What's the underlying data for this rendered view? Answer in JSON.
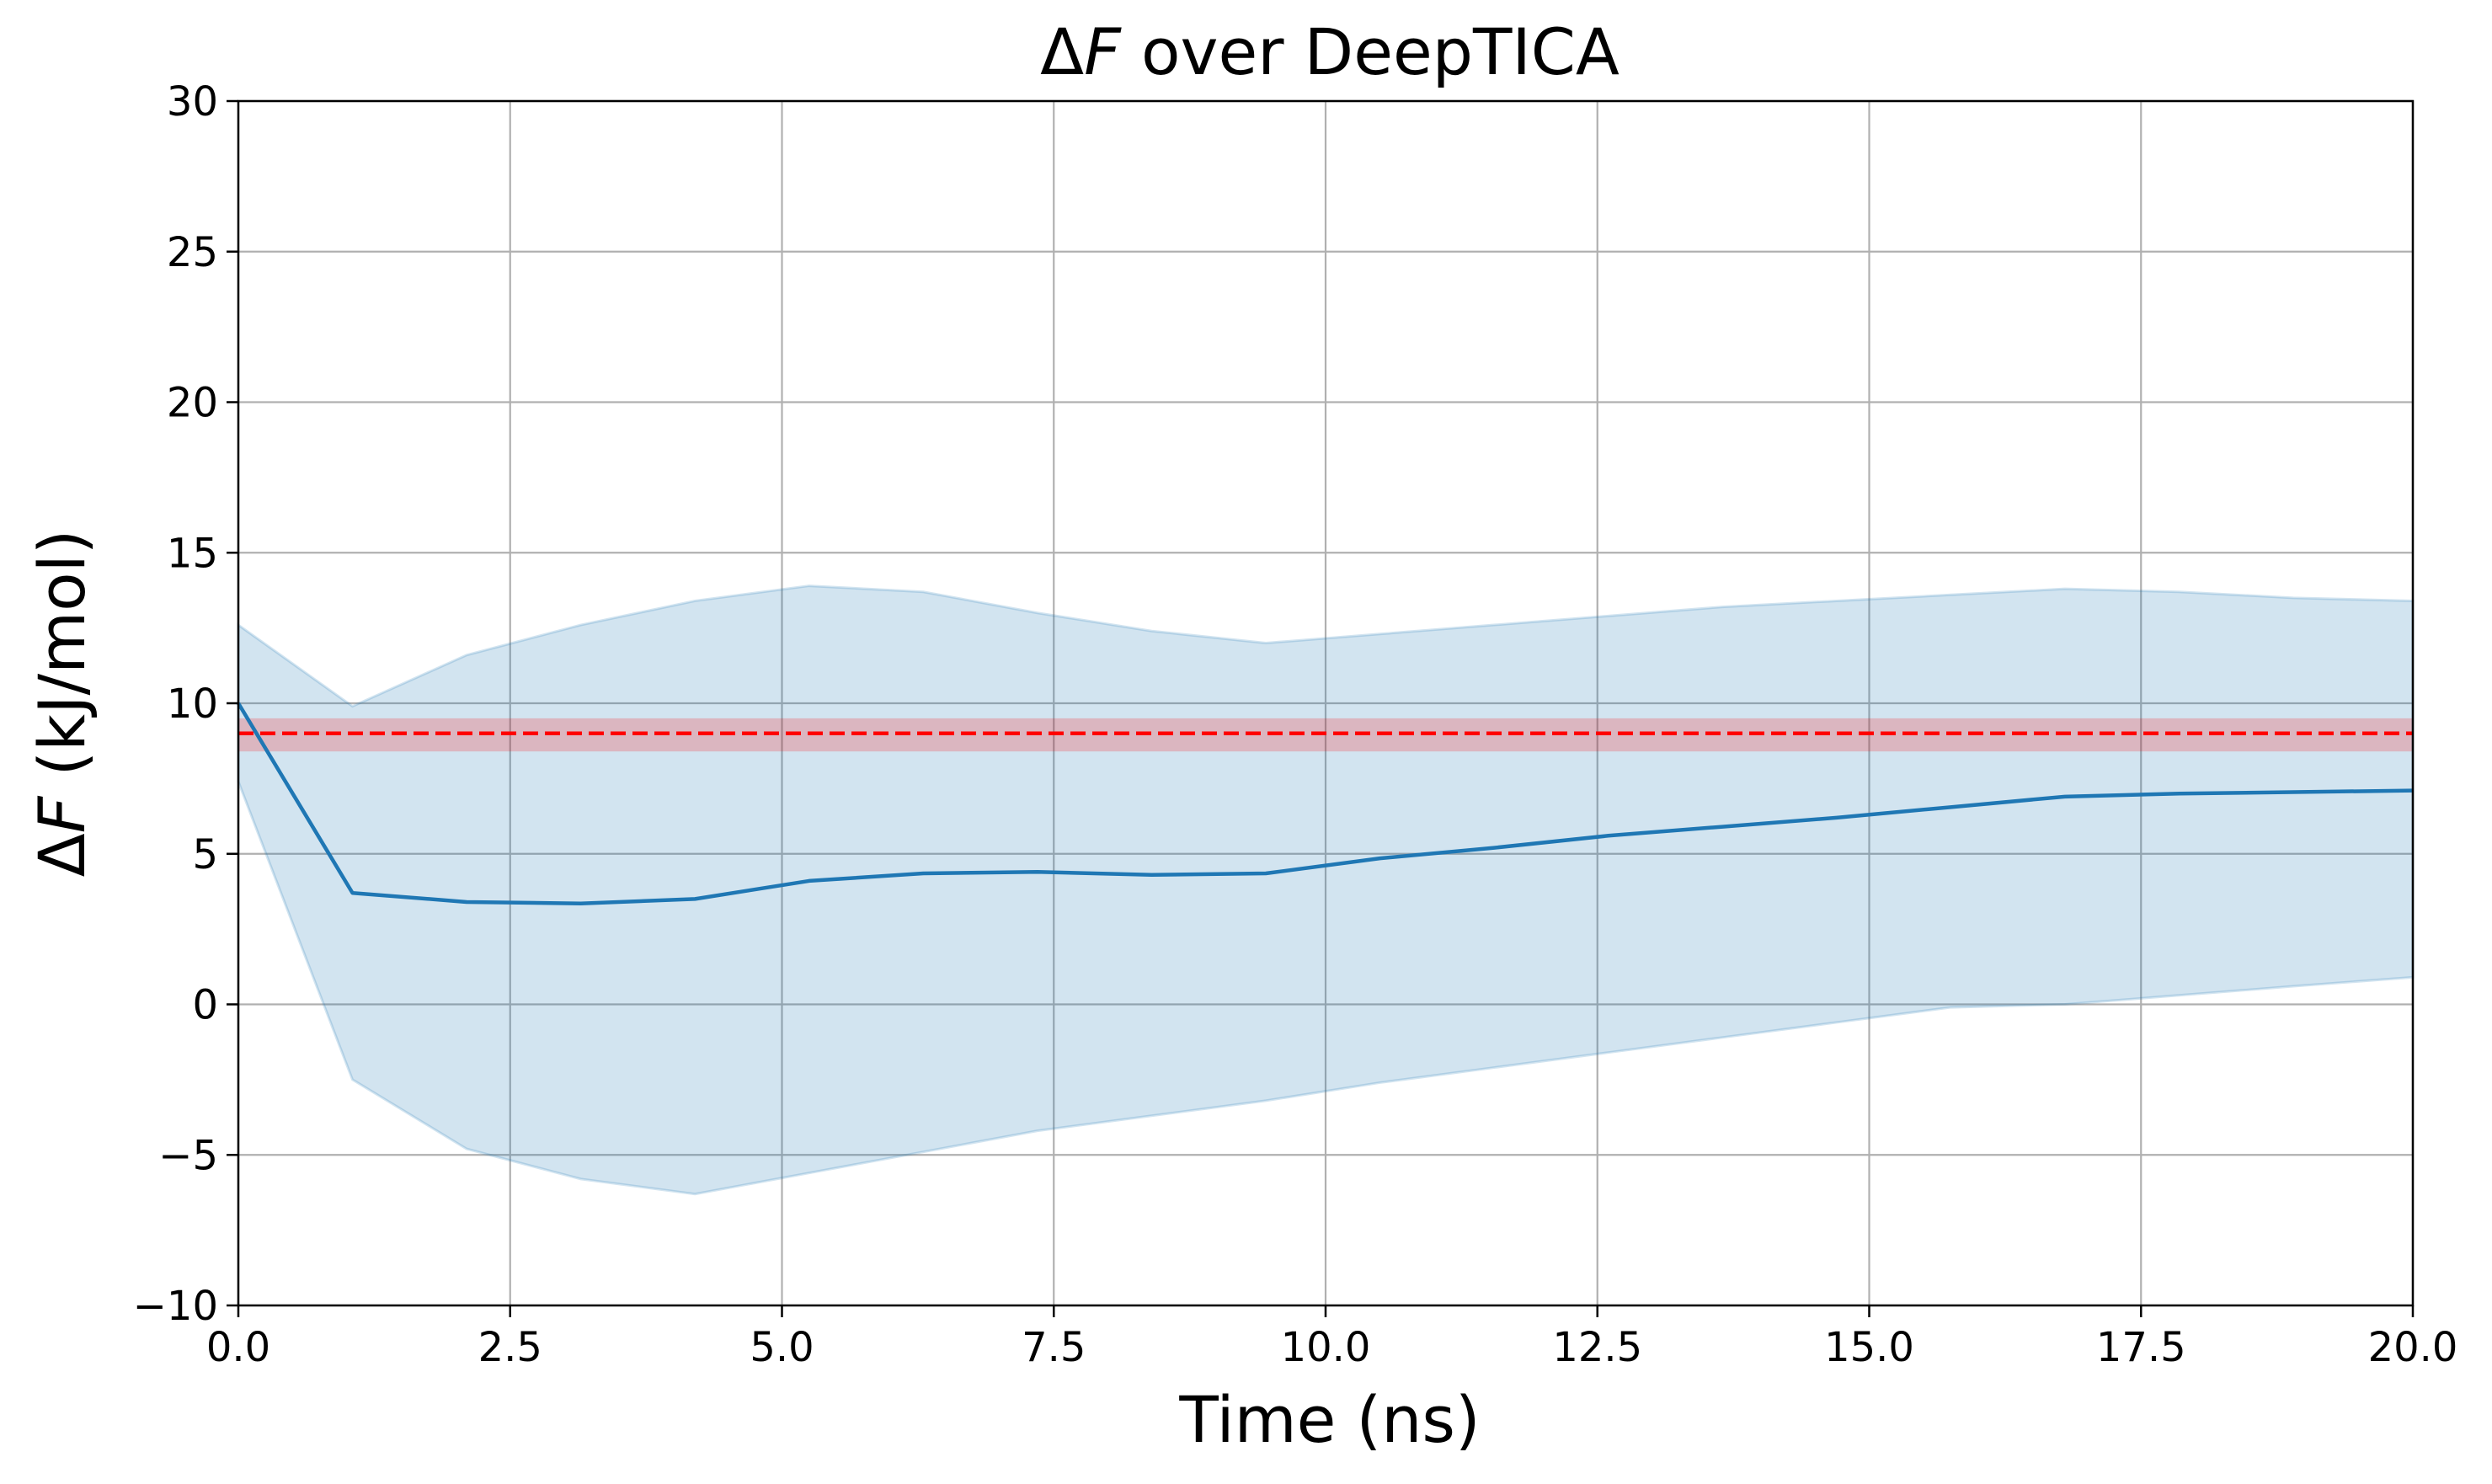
{
  "chart_data": {
    "type": "line",
    "title": {
      "symbol": "Δ",
      "italic": "F",
      "rest": " over DeepTICA"
    },
    "xlabel": "Time (ns)",
    "ylabel": {
      "symbol": "Δ",
      "italic": "F",
      "rest": " (kJ/mol)"
    },
    "xlim": [
      0,
      20
    ],
    "ylim": [
      -10,
      30
    ],
    "xticks": [
      0,
      2.5,
      5,
      7.5,
      10,
      12.5,
      15,
      17.5,
      20
    ],
    "xtick_labels": [
      "0.0",
      "2.5",
      "5.0",
      "7.5",
      "10.0",
      "12.5",
      "15.0",
      "17.5",
      "20.0"
    ],
    "yticks": [
      -10,
      -5,
      0,
      5,
      10,
      15,
      20,
      25,
      30
    ],
    "ytick_labels": [
      "−10",
      "−5",
      "0",
      "5",
      "10",
      "15",
      "20",
      "25",
      "30"
    ],
    "grid": true,
    "series": [
      {
        "x": [
          0,
          1.05,
          2.1,
          3.15,
          4.2,
          5.25,
          6.3,
          7.35,
          8.4,
          9.45,
          10.5,
          11.55,
          12.6,
          13.65,
          14.7,
          15.75,
          16.8,
          17.85,
          18.9,
          20
        ],
        "values": [
          10.0,
          3.7,
          3.4,
          3.35,
          3.5,
          4.1,
          4.35,
          4.4,
          4.3,
          4.35,
          4.85,
          5.2,
          5.6,
          5.9,
          6.2,
          6.55,
          6.9,
          7.0,
          7.05,
          7.1
        ],
        "lower": [
          7.4,
          -2.5,
          -4.8,
          -5.8,
          -6.3,
          -5.6,
          -4.9,
          -4.2,
          -3.7,
          -3.2,
          -2.6,
          -2.1,
          -1.6,
          -1.1,
          -0.6,
          -0.1,
          0.0,
          0.3,
          0.6,
          0.9
        ],
        "upper": [
          12.6,
          9.9,
          11.6,
          12.6,
          13.4,
          13.9,
          13.7,
          13.0,
          12.4,
          12.0,
          12.3,
          12.6,
          12.9,
          13.2,
          13.4,
          13.6,
          13.8,
          13.7,
          13.5,
          13.4
        ],
        "line_color": "#1f77b4",
        "band_color": "#1f77b4"
      }
    ],
    "reference_line": {
      "y": 9.0,
      "band": [
        8.4,
        9.5
      ],
      "line_color": "#ff0000",
      "band_color": "#ff0000",
      "style": "dashed"
    }
  }
}
